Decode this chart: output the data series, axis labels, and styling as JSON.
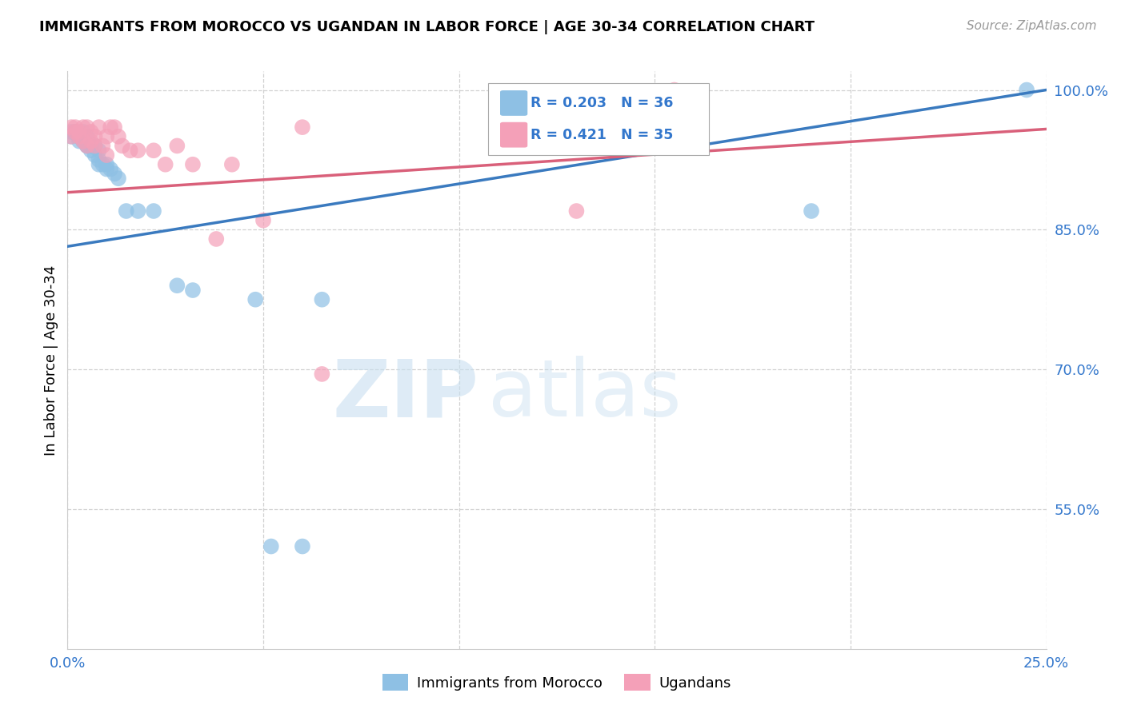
{
  "title": "IMMIGRANTS FROM MOROCCO VS UGANDAN IN LABOR FORCE | AGE 30-34 CORRELATION CHART",
  "source": "Source: ZipAtlas.com",
  "ylabel": "In Labor Force | Age 30-34",
  "xlim": [
    0.0,
    0.25
  ],
  "ylim": [
    0.4,
    1.02
  ],
  "xticks": [
    0.0,
    0.05,
    0.1,
    0.15,
    0.2,
    0.25
  ],
  "xtick_labels": [
    "0.0%",
    "",
    "",
    "",
    "",
    "25.0%"
  ],
  "yticks": [
    0.55,
    0.7,
    0.85,
    1.0
  ],
  "ytick_labels": [
    "55.0%",
    "70.0%",
    "85.0%",
    "100.0%"
  ],
  "morocco_color": "#8ec0e4",
  "ugandan_color": "#f4a0b8",
  "morocco_R": 0.203,
  "morocco_N": 36,
  "ugandan_R": 0.421,
  "ugandan_N": 35,
  "morocco_line_color": "#3a7abf",
  "ugandan_line_color": "#d9607a",
  "background_color": "#ffffff",
  "grid_color": "#cccccc",
  "watermark_zip": "ZIP",
  "watermark_atlas": "atlas",
  "morocco_x": [
    0.001,
    0.001,
    0.002,
    0.002,
    0.003,
    0.003,
    0.003,
    0.004,
    0.004,
    0.005,
    0.005,
    0.005,
    0.006,
    0.006,
    0.007,
    0.007,
    0.008,
    0.008,
    0.008,
    0.009,
    0.01,
    0.01,
    0.011,
    0.012,
    0.013,
    0.015,
    0.018,
    0.022,
    0.028,
    0.032,
    0.048,
    0.052,
    0.06,
    0.065,
    0.19,
    0.245
  ],
  "morocco_y": [
    0.955,
    0.95,
    0.955,
    0.955,
    0.95,
    0.95,
    0.945,
    0.955,
    0.945,
    0.94,
    0.94,
    0.95,
    0.94,
    0.935,
    0.94,
    0.93,
    0.935,
    0.925,
    0.92,
    0.92,
    0.92,
    0.915,
    0.915,
    0.91,
    0.905,
    0.87,
    0.87,
    0.87,
    0.79,
    0.785,
    0.775,
    0.51,
    0.51,
    0.775,
    0.87,
    1.0
  ],
  "ugandan_x": [
    0.001,
    0.001,
    0.002,
    0.002,
    0.003,
    0.003,
    0.004,
    0.004,
    0.005,
    0.005,
    0.006,
    0.006,
    0.007,
    0.007,
    0.008,
    0.009,
    0.01,
    0.01,
    0.011,
    0.012,
    0.013,
    0.014,
    0.016,
    0.018,
    0.022,
    0.025,
    0.028,
    0.032,
    0.038,
    0.042,
    0.05,
    0.06,
    0.065,
    0.13,
    0.155
  ],
  "ugandan_y": [
    0.96,
    0.95,
    0.96,
    0.955,
    0.955,
    0.95,
    0.96,
    0.945,
    0.94,
    0.96,
    0.955,
    0.945,
    0.95,
    0.94,
    0.96,
    0.94,
    0.95,
    0.93,
    0.96,
    0.96,
    0.95,
    0.94,
    0.935,
    0.935,
    0.935,
    0.92,
    0.94,
    0.92,
    0.84,
    0.92,
    0.86,
    0.96,
    0.695,
    0.87,
    1.0
  ]
}
